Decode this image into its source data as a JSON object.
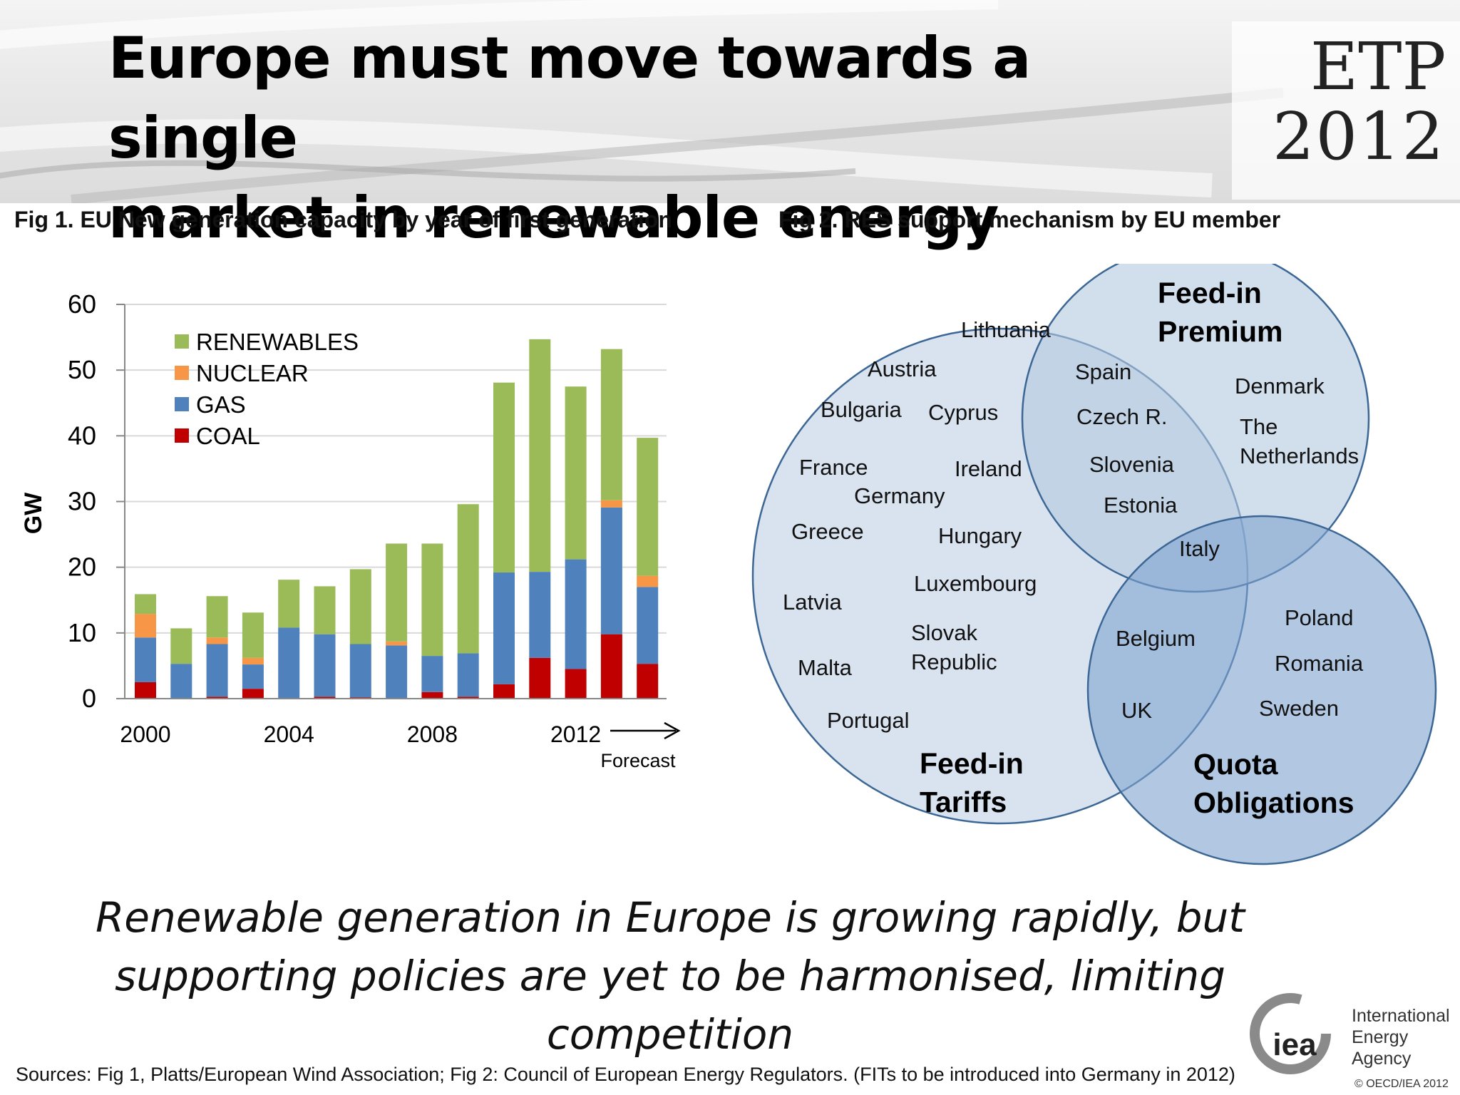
{
  "header": {
    "title_line1": "Europe must move towards a single",
    "title_line2": "market in renewable energy",
    "logo_line1": "ETP",
    "logo_line2": "2012"
  },
  "fig1": {
    "caption": "Fig 1. EU New generation capacity by year of first generation",
    "forecast_label": "Forecast"
  },
  "fig2": {
    "caption": "Fig 2. RES support mechanism by EU member",
    "sets": {
      "fit": "Feed-in Tariffs",
      "fip": "Feed-in Premium",
      "quota": "Quota Obligations"
    },
    "fit_only": [
      "Lithuania",
      "Austria",
      "Bulgaria",
      "Cyprus",
      "France",
      "Ireland",
      "Germany",
      "Greece",
      "Hungary",
      "Luxembourg",
      "Latvia",
      "Slovak Republic",
      "Malta",
      "Portugal"
    ],
    "fit_fip": [
      "Spain",
      "Czech R.",
      "Slovenia",
      "Estonia"
    ],
    "fip_only": [
      "Denmark",
      "The Netherlands"
    ],
    "fit_fip_quota": [
      "Italy"
    ],
    "fit_quota": [
      "Belgium",
      "UK"
    ],
    "quota_only": [
      "Poland",
      "Romania",
      "Sweden"
    ]
  },
  "chart_data": {
    "type": "bar",
    "stacked": true,
    "ylabel": "GW",
    "xlabel": "",
    "ylim": [
      0,
      60
    ],
    "yticks": [
      0,
      10,
      20,
      30,
      40,
      50,
      60
    ],
    "x": [
      2000,
      2001,
      2002,
      2003,
      2004,
      2005,
      2006,
      2007,
      2008,
      2009,
      2010,
      2011,
      2012,
      2013,
      2014
    ],
    "xtick_labels": [
      "2000",
      "2004",
      "2008",
      "2012"
    ],
    "forecast_from": 2013,
    "legend_position": "top-left",
    "series": [
      {
        "name": "COAL",
        "color": "#c00000",
        "values": [
          2.5,
          0,
          0.3,
          1.5,
          0,
          0.3,
          0.2,
          0,
          1,
          0.3,
          2.2,
          6.2,
          4.5,
          9.8,
          5.3
        ]
      },
      {
        "name": "GAS",
        "color": "#4f81bd",
        "values": [
          6.8,
          5.3,
          8,
          3.7,
          10.8,
          9.5,
          8.1,
          8.1,
          5.5,
          6.6,
          17,
          13.1,
          16.7,
          19.3,
          11.7
        ]
      },
      {
        "name": "NUCLEAR",
        "color": "#f79646",
        "values": [
          3.6,
          0,
          1,
          1,
          0,
          0,
          0,
          0.6,
          0,
          0,
          0,
          0,
          0,
          1.1,
          1.7
        ]
      },
      {
        "name": "RENEWABLES",
        "color": "#9bbb59",
        "values": [
          3,
          5.4,
          6.3,
          6.9,
          7.3,
          7.3,
          11.4,
          14.9,
          17.1,
          22.7,
          28.9,
          35.4,
          26.3,
          23,
          21
        ]
      }
    ]
  },
  "footer": {
    "conclusion_line1": "Renewable generation in Europe is growing rapidly, but",
    "conclusion_line2": "supporting policies are yet to be harmonised, limiting",
    "conclusion_line3": "competition",
    "sources": "Sources: Fig 1, Platts/European Wind Association; Fig 2: Council of European Energy Regulators. (FITs to be introduced into Germany in 2012)",
    "iea_short": "iea",
    "iea_line1": "International",
    "iea_line2": "Energy Agency",
    "copyright": "© OECD/IEA 2012"
  }
}
